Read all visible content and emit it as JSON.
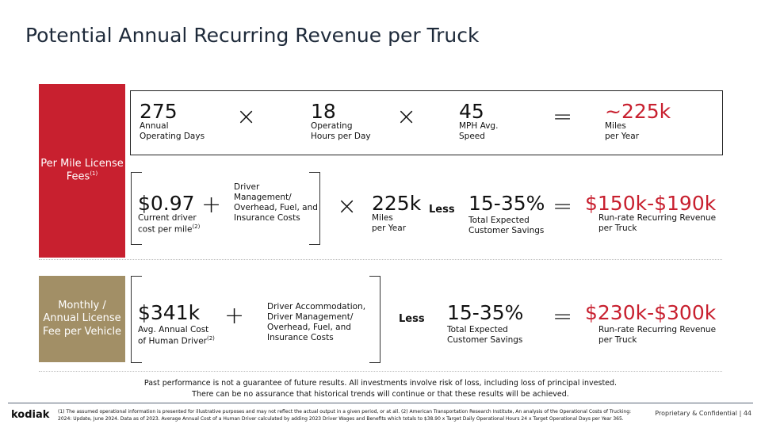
{
  "title": "Potential Annual Recurring Revenue per Truck",
  "colors": {
    "red": "#c8202f",
    "tan": "#a28f66"
  },
  "per_mile": {
    "side_label": "Per Mile License Fees",
    "side_sup": "(1)",
    "row1": [
      {
        "value": "275",
        "label1": "Annual",
        "label2": "Operating Days"
      },
      {
        "value": "18",
        "label1": "Operating",
        "label2": "Hours per Day"
      },
      {
        "value": "45",
        "label1": "MPH Avg.",
        "label2": "Speed"
      },
      {
        "value": "~225k",
        "label1": "Miles",
        "label2": "per Year"
      }
    ],
    "row2": {
      "cost": "$0.97",
      "cost_l1": "Current driver",
      "cost_l2": "cost per mile",
      "cost_sup": "(2)",
      "overhead": [
        "Driver",
        "Management/",
        "Overhead, Fuel, and",
        "Insurance Costs"
      ],
      "miles": "225k",
      "miles_l1": "Miles",
      "miles_l2": "per Year",
      "less": "Less",
      "savings": "15-35%",
      "savings_l1": "Total Expected",
      "savings_l2": "Customer Savings",
      "result": "$150k-$190k",
      "result_l1": "Run-rate Recurring Revenue",
      "result_l2": "per Truck"
    }
  },
  "monthly": {
    "side_label": "Monthly / Annual License Fee per Vehicle",
    "cost": "$341k",
    "cost_l1": "Avg. Annual Cost",
    "cost_l2": "of Human Driver",
    "cost_sup": "(2)",
    "overhead": [
      "Driver Accommodation,",
      "Driver Management/",
      "Overhead, Fuel, and",
      "Insurance Costs"
    ],
    "less": "Less",
    "savings": "15-35%",
    "savings_l1": "Total Expected",
    "savings_l2": "Customer Savings",
    "result": "$230k-$300k",
    "result_l1": "Run-rate Recurring Revenue",
    "result_l2": "per Truck"
  },
  "ops": {
    "times": "×",
    "plus": "+",
    "equals": "="
  },
  "disclaimer": [
    "Past performance is not a guarantee of future results. All investments involve risk of loss, including loss of principal invested.",
    "There can be no assurance that historical trends will continue or that these results will be achieved."
  ],
  "footer": {
    "logo": "kodiak",
    "note1": "(1) The assumed operational information is presented for illustrative purposes and may not reflect the actual output in a given period, or at all.  (2) American Transportation Research Institute, An analysis of the Operational Costs of Trucking:",
    "note2": "2024: Update, June 2024. Data as of 2023. Average Annual Cost of a Human Driver calculated by adding 2023 Driver Wages and Benefits which totals to $38.90 x Target Daily Operational Hours 24 x Target Operational Days per Year 365.",
    "confidential": "Proprietary & Confidential | 44"
  }
}
